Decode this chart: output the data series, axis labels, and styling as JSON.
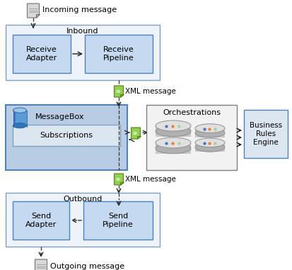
{
  "bg_color": "#ffffff",
  "box_fill_outer_light": "#eef2f8",
  "box_fill_inner": "#c5d9f1",
  "box_fill_mb": "#b8cce4",
  "box_stroke_blue": "#4f81bd",
  "box_stroke_gray": "#808080",
  "box_fill_orch": "#f2f2f2",
  "box_fill_biz": "#dce6f1",
  "text_color": "#000000",
  "incoming_msg": "Incoming message",
  "inbound_label": "Inbound",
  "receive_adapter": "Receive\nAdapter",
  "receive_pipeline": "Receive\nPipeline",
  "xml_msg1": "XML message",
  "messagebox_label": "MessageBox",
  "subscriptions_label": "Subscriptions",
  "orchestrations_label": "Orchestrations",
  "biz_rules_label": "Business\nRules\nEngine",
  "xml_msg2": "XML message",
  "outbound_label": "Outbound",
  "send_adapter": "Send\nAdapter",
  "send_pipeline": "Send\nPipeline",
  "outgoing_msg": "Outgoing message",
  "arrow_color": "#1f1f1f",
  "dashed_color": "#404040"
}
